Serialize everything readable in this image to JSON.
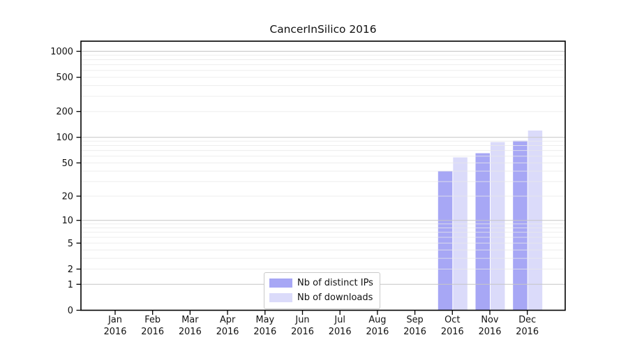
{
  "title": "CancerInSilico 2016",
  "chart_data": {
    "type": "bar",
    "title": "CancerInSilico 2016",
    "categories": [
      "Jan",
      "Feb",
      "Mar",
      "Apr",
      "May",
      "Jun",
      "Jul",
      "Aug",
      "Sep",
      "Oct",
      "Nov",
      "Dec"
    ],
    "year_label": "2016",
    "series": [
      {
        "name": "Nb of distinct IPs",
        "color": "#a7a7f5",
        "values": [
          0,
          0,
          0,
          0,
          0,
          0,
          0,
          0,
          0,
          40,
          65,
          91
        ]
      },
      {
        "name": "Nb of downloads",
        "color": "#dbdbfa",
        "values": [
          0,
          0,
          0,
          0,
          0,
          0,
          0,
          0,
          0,
          58,
          88,
          120
        ]
      }
    ],
    "xlabel": "",
    "ylabel": "",
    "y_scale": "log1p",
    "ylim": [
      0,
      1310
    ],
    "y_tick_labels": [
      "0",
      "1",
      "2",
      "5",
      "10",
      "20",
      "50",
      "100",
      "200",
      "500",
      "1000"
    ],
    "y_major_gridlines": [
      1,
      10,
      100,
      1000
    ],
    "grid": "horizontal",
    "legend_position": "lower-center",
    "colors": {
      "axis": "#000000",
      "major_grid": "#c6c6c6",
      "minor_grid": "#e9e9e9",
      "background": "#ffffff"
    }
  }
}
